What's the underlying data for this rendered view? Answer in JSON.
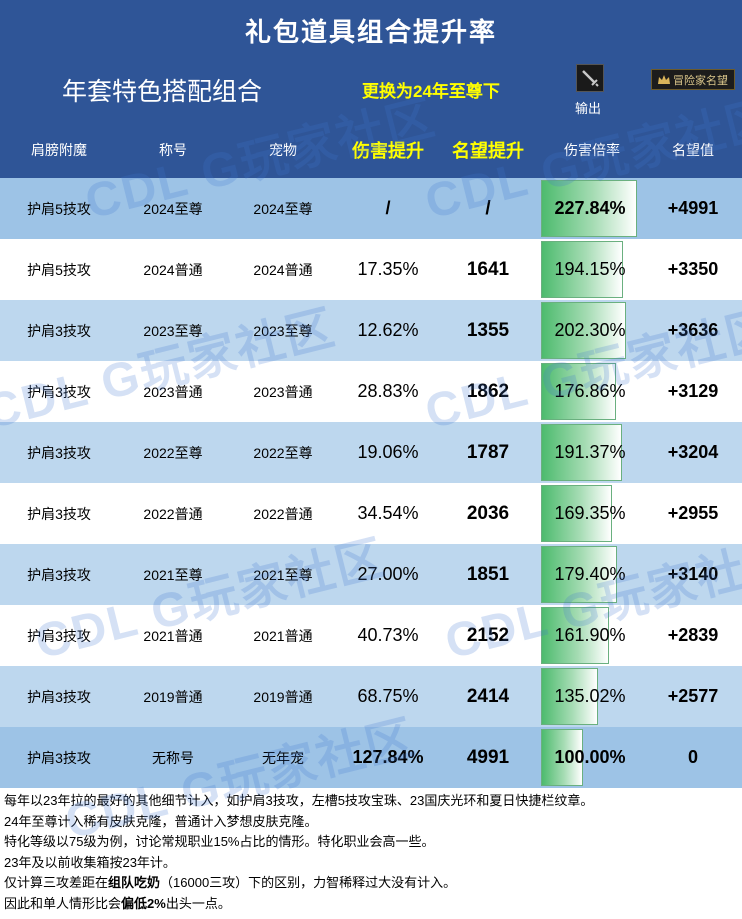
{
  "title": "礼包道具组合提升率",
  "subtitle": "年套特色搭配组合",
  "switch_link": "更换为24年至尊下",
  "export_label": "输出",
  "badge_label": "冒险家名望",
  "watermark": "CDL G玩家社区",
  "columns": [
    "肩膀附魔",
    "称号",
    "宠物",
    "伤害提升",
    "名望提升",
    "伤害倍率",
    "名望值"
  ],
  "rows": [
    {
      "shoulder": "护肩5技攻",
      "title": "2024至尊",
      "pet": "2024至尊",
      "dmg_up": "/",
      "fame_up": "/",
      "multiplier": "227.84%",
      "multiplier_value": 227.84,
      "fame": "+4991"
    },
    {
      "shoulder": "护肩5技攻",
      "title": "2024普通",
      "pet": "2024普通",
      "dmg_up": "17.35%",
      "fame_up": "1641",
      "multiplier": "194.15%",
      "multiplier_value": 194.15,
      "fame": "+3350"
    },
    {
      "shoulder": "护肩3技攻",
      "title": "2023至尊",
      "pet": "2023至尊",
      "dmg_up": "12.62%",
      "fame_up": "1355",
      "multiplier": "202.30%",
      "multiplier_value": 202.3,
      "fame": "+3636"
    },
    {
      "shoulder": "护肩3技攻",
      "title": "2023普通",
      "pet": "2023普通",
      "dmg_up": "28.83%",
      "fame_up": "1862",
      "multiplier": "176.86%",
      "multiplier_value": 176.86,
      "fame": "+3129"
    },
    {
      "shoulder": "护肩3技攻",
      "title": "2022至尊",
      "pet": "2022至尊",
      "dmg_up": "19.06%",
      "fame_up": "1787",
      "multiplier": "191.37%",
      "multiplier_value": 191.37,
      "fame": "+3204"
    },
    {
      "shoulder": "护肩3技攻",
      "title": "2022普通",
      "pet": "2022普通",
      "dmg_up": "34.54%",
      "fame_up": "2036",
      "multiplier": "169.35%",
      "multiplier_value": 169.35,
      "fame": "+2955"
    },
    {
      "shoulder": "护肩3技攻",
      "title": "2021至尊",
      "pet": "2021至尊",
      "dmg_up": "27.00%",
      "fame_up": "1851",
      "multiplier": "179.40%",
      "multiplier_value": 179.4,
      "fame": "+3140"
    },
    {
      "shoulder": "护肩3技攻",
      "title": "2021普通",
      "pet": "2021普通",
      "dmg_up": "40.73%",
      "fame_up": "2152",
      "multiplier": "161.90%",
      "multiplier_value": 161.9,
      "fame": "+2839"
    },
    {
      "shoulder": "护肩3技攻",
      "title": "2019普通",
      "pet": "2019普通",
      "dmg_up": "68.75%",
      "fame_up": "2414",
      "multiplier": "135.02%",
      "multiplier_value": 135.02,
      "fame": "+2577"
    },
    {
      "shoulder": "护肩3技攻",
      "title": "无称号",
      "pet": "无年宠",
      "dmg_up": "127.84%",
      "fame_up": "4991",
      "multiplier": "100.00%",
      "multiplier_value": 100.0,
      "fame": "0"
    }
  ],
  "notes": {
    "line1": "每年以23年拉的最好的其他细节计入，如护肩3技攻，左槽5技攻宝珠、23国庆光环和夏日快捷栏纹章。",
    "line2": "24年至尊计入稀有皮肤克隆，普通计入梦想皮肤克隆。",
    "line3": "特化等级以75级为例，讨论常规职业15%占比的情形。特化职业会高一些。",
    "line4": "23年及以前收集箱按23年计。",
    "line5_a": "仅计算三攻差距在",
    "line5_b": "组队吃奶",
    "line5_c": "（16000三攻）下的区别，力智稀释过大没有计入。",
    "line6_a": "因此和单人情形比会",
    "line6_b": "偏低2%",
    "line6_c": "出头一点。"
  }
}
